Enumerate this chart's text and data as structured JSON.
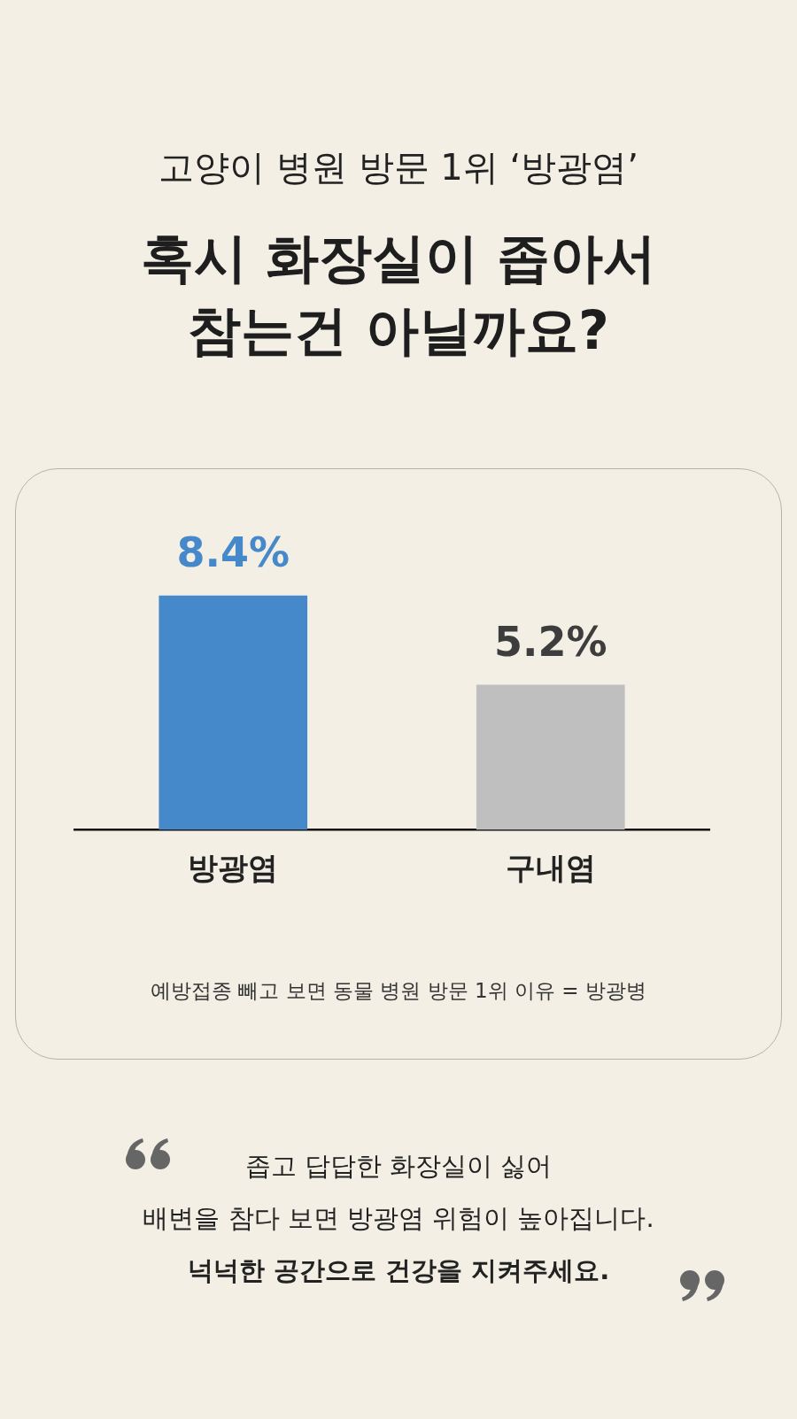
{
  "chart_data": {
    "type": "bar",
    "subtitle": "고양이 병원 방문 1위 ‘방광염’",
    "title": "혹시 화장실이 좁아서\n참는건 아닐까요?",
    "categories": [
      "방광염",
      "구내염"
    ],
    "values": [
      8.4,
      5.2
    ],
    "colors": [
      "#4689ca",
      "#bfbfbf"
    ],
    "value_labels": [
      "8.4%",
      "5.2%"
    ],
    "tick_labels": "x",
    "annotations": [
      "예방접종 빼고 보면 동물 병원 방문 1위 이유 = 방광병",
      "좁고 답답한 화장실이 싫어\n배변을 참다 보면 방광염 위험이 높아집니다.\n넉넉한 공간으로 건강을 지켜주세요."
    ]
  }
}
